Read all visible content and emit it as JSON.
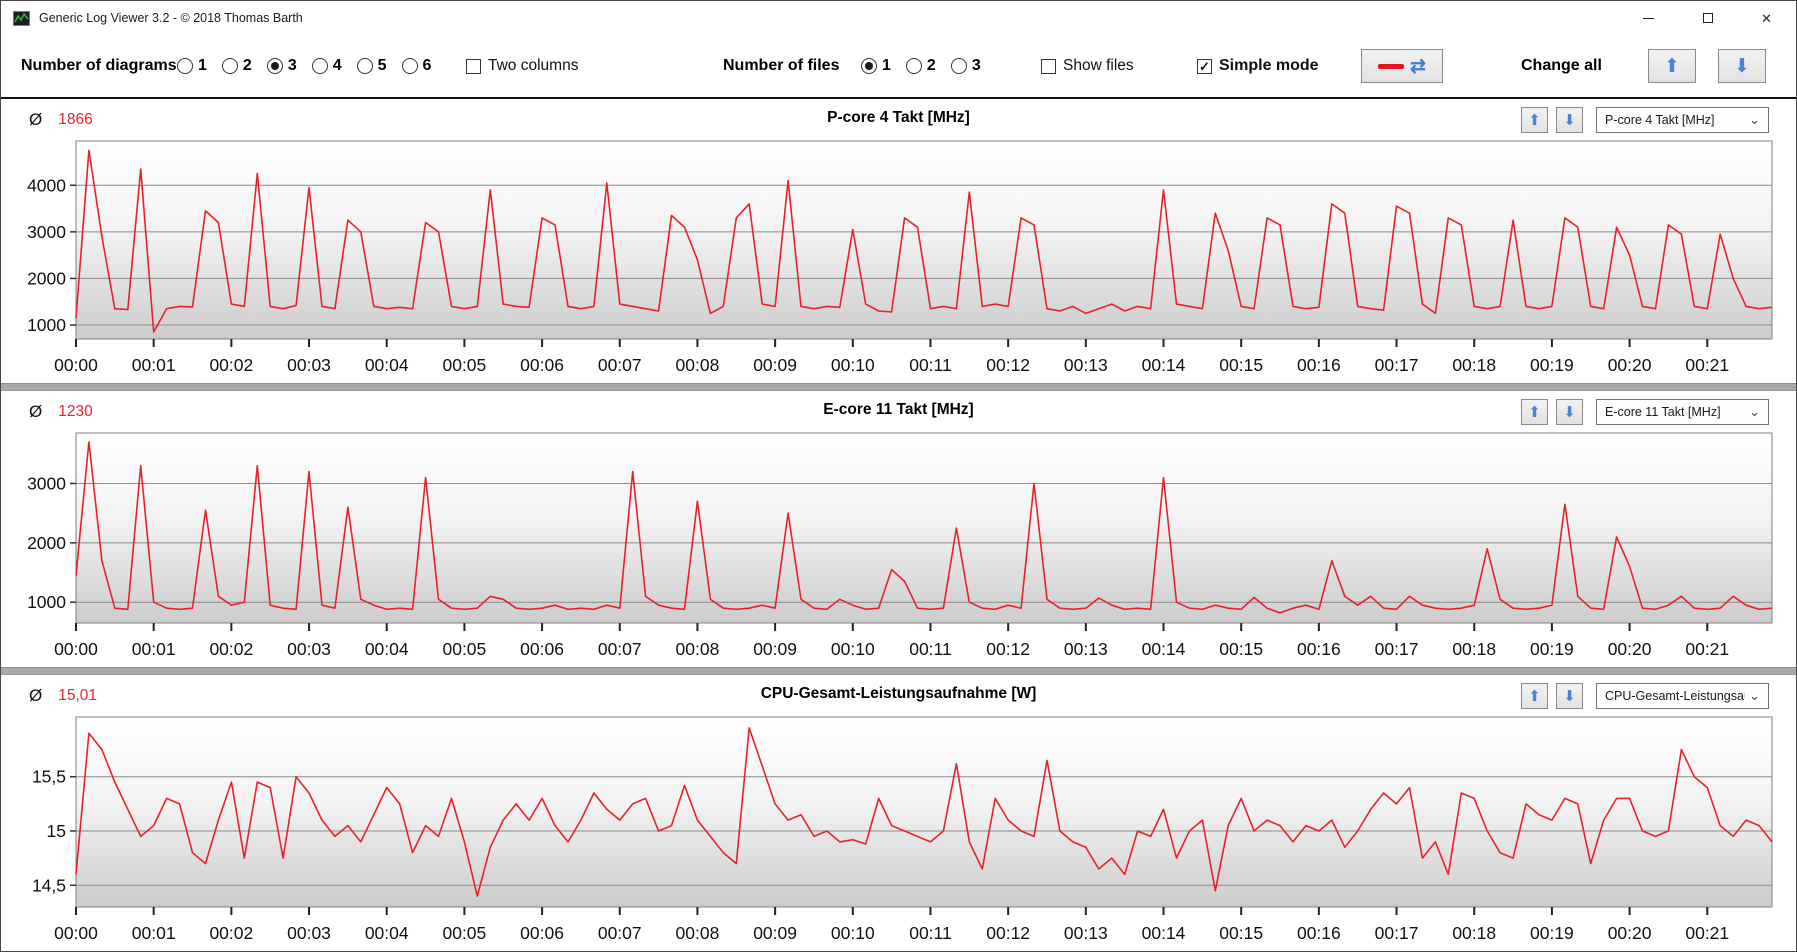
{
  "window": {
    "title": "Generic Log Viewer 3.2 - © 2018 Thomas Barth",
    "controls": {
      "minimize": "minimize",
      "maximize": "maximize",
      "close": "close"
    }
  },
  "toolbar": {
    "number_of_diagrams": {
      "label": "Number of diagrams",
      "options": [
        "1",
        "2",
        "3",
        "4",
        "5",
        "6"
      ],
      "selected": "3"
    },
    "two_columns": {
      "label": "Two columns",
      "checked": false
    },
    "number_of_files": {
      "label": "Number of files",
      "options": [
        "1",
        "2",
        "3"
      ],
      "selected": "1"
    },
    "show_files": {
      "label": "Show files",
      "checked": false
    },
    "simple_mode": {
      "label": "Simple mode",
      "checked": true
    },
    "change_all_label": "Change all",
    "colors": {
      "red_dash": "#e8121f",
      "arrow_blue": "#4a83d4"
    }
  },
  "panels": [
    {
      "avg_symbol": "Ø",
      "average": "1866",
      "title": "P-core 4 Takt [MHz]",
      "dropdown_value": "P-core 4 Takt [MHz]"
    },
    {
      "avg_symbol": "Ø",
      "average": "1230",
      "title": "E-core 11 Takt [MHz]",
      "dropdown_value": "E-core 11 Takt [MHz]"
    },
    {
      "avg_symbol": "Ø",
      "average": "15,01",
      "title": "CPU-Gesamt-Leistungsaufnahme [W]",
      "dropdown_value": "CPU-Gesamt-Leistungsau"
    }
  ],
  "chart_data": [
    {
      "type": "line",
      "title": "P-core 4 Takt [MHz]",
      "average": 1866,
      "line_color": "#e8222a",
      "ylim": [
        700,
        4950
      ],
      "ytick_values": [
        1000,
        2000,
        3000,
        4000
      ],
      "ytick_labels": [
        "1000",
        "2000",
        "3000",
        "4000"
      ],
      "x_step_seconds": 10,
      "x_range_seconds": [
        0,
        1310
      ],
      "x_tick_interval_seconds": 60,
      "x_tick_labels": [
        "00:00",
        "00:01",
        "00:02",
        "00:03",
        "00:04",
        "00:05",
        "00:06",
        "00:07",
        "00:08",
        "00:09",
        "00:10",
        "00:11",
        "00:12",
        "00:13",
        "00:14",
        "00:15",
        "00:16",
        "00:17",
        "00:18",
        "00:19",
        "00:20",
        "00:21"
      ],
      "values": [
        1150,
        4750,
        2900,
        1350,
        1330,
        4350,
        850,
        1350,
        1400,
        1390,
        3450,
        3200,
        1450,
        1400,
        4250,
        1400,
        1350,
        1420,
        3950,
        1400,
        1350,
        3250,
        3000,
        1400,
        1350,
        1380,
        1350,
        3200,
        3000,
        1400,
        1350,
        1400,
        3900,
        1450,
        1400,
        1380,
        3300,
        3150,
        1400,
        1350,
        1400,
        4050,
        1450,
        1400,
        1350,
        1300,
        3350,
        3100,
        2400,
        1250,
        1400,
        3300,
        3600,
        1450,
        1400,
        4100,
        1400,
        1350,
        1400,
        1380,
        3050,
        1450,
        1300,
        1280,
        3300,
        3100,
        1350,
        1400,
        1350,
        3850,
        1400,
        1450,
        1400,
        3300,
        3150,
        1350,
        1300,
        1400,
        1250,
        1350,
        1450,
        1300,
        1400,
        1350,
        3900,
        1450,
        1400,
        1350,
        3400,
        2600,
        1400,
        1350,
        3300,
        3150,
        1400,
        1350,
        1380,
        3600,
        3400,
        1400,
        1350,
        1320,
        3550,
        3400,
        1450,
        1250,
        3300,
        3150,
        1400,
        1350,
        1400,
        3250,
        1400,
        1350,
        1400,
        3300,
        3100,
        1400,
        1350,
        3100,
        2500,
        1400,
        1350,
        3150,
        2950,
        1400,
        1350,
        2950,
        2000,
        1400,
        1350,
        1380
      ]
    },
    {
      "type": "line",
      "title": "E-core 11 Takt [MHz]",
      "average": 1230,
      "line_color": "#e8222a",
      "ylim": [
        650,
        3850
      ],
      "ytick_values": [
        1000,
        2000,
        3000
      ],
      "ytick_labels": [
        "1000",
        "2000",
        "3000"
      ],
      "x_step_seconds": 10,
      "x_range_seconds": [
        0,
        1310
      ],
      "x_tick_interval_seconds": 60,
      "x_tick_labels": [
        "00:00",
        "00:01",
        "00:02",
        "00:03",
        "00:04",
        "00:05",
        "00:06",
        "00:07",
        "00:08",
        "00:09",
        "00:10",
        "00:11",
        "00:12",
        "00:13",
        "00:14",
        "00:15",
        "00:16",
        "00:17",
        "00:18",
        "00:19",
        "00:20",
        "00:21"
      ],
      "values": [
        1450,
        3700,
        1700,
        900,
        880,
        3300,
        1000,
        900,
        880,
        900,
        2550,
        1100,
        950,
        1000,
        3300,
        950,
        900,
        880,
        3200,
        950,
        900,
        2600,
        1050,
        950,
        880,
        900,
        880,
        3100,
        1050,
        900,
        880,
        900,
        1100,
        1050,
        900,
        880,
        900,
        950,
        880,
        900,
        880,
        950,
        900,
        3200,
        1100,
        950,
        900,
        880,
        2700,
        1050,
        900,
        880,
        900,
        950,
        900,
        2500,
        1050,
        900,
        880,
        1050,
        950,
        880,
        900,
        1550,
        1350,
        900,
        880,
        900,
        2250,
        1000,
        900,
        880,
        950,
        900,
        3000,
        1050,
        900,
        880,
        900,
        1070,
        950,
        880,
        900,
        880,
        3100,
        1000,
        900,
        880,
        950,
        900,
        880,
        1080,
        900,
        820,
        900,
        950,
        880,
        1700,
        1100,
        950,
        1100,
        900,
        880,
        1100,
        950,
        900,
        880,
        900,
        950,
        1900,
        1050,
        900,
        880,
        900,
        950,
        2650,
        1100,
        900,
        880,
        2100,
        1600,
        900,
        880,
        950,
        1100,
        900,
        880,
        900,
        1100,
        950,
        880,
        900
      ]
    },
    {
      "type": "line",
      "title": "CPU-Gesamt-Leistungsaufnahme [W]",
      "average": 15.01,
      "line_color": "#e8222a",
      "ylim": [
        14.3,
        16.05
      ],
      "ytick_values": [
        14.5,
        15,
        15.5
      ],
      "ytick_labels": [
        "14,5",
        "15",
        "15,5"
      ],
      "x_step_seconds": 10,
      "x_range_seconds": [
        0,
        1310
      ],
      "x_tick_interval_seconds": 60,
      "x_tick_labels": [
        "00:00",
        "00:01",
        "00:02",
        "00:03",
        "00:04",
        "00:05",
        "00:06",
        "00:07",
        "00:08",
        "00:09",
        "00:10",
        "00:11",
        "00:12",
        "00:13",
        "00:14",
        "00:15",
        "00:16",
        "00:17",
        "00:18",
        "00:19",
        "00:20",
        "00:21"
      ],
      "values": [
        14.6,
        15.9,
        15.75,
        15.45,
        15.2,
        14.95,
        15.05,
        15.3,
        15.25,
        14.8,
        14.7,
        15.1,
        15.45,
        14.75,
        15.45,
        15.4,
        14.75,
        15.5,
        15.35,
        15.1,
        14.95,
        15.05,
        14.9,
        15.15,
        15.4,
        15.25,
        14.8,
        15.05,
        14.95,
        15.3,
        14.9,
        14.4,
        14.85,
        15.1,
        15.25,
        15.1,
        15.3,
        15.05,
        14.9,
        15.1,
        15.35,
        15.2,
        15.1,
        15.25,
        15.3,
        15.0,
        15.05,
        15.42,
        15.1,
        14.95,
        14.8,
        14.7,
        15.95,
        15.6,
        15.25,
        15.1,
        15.15,
        14.95,
        15.0,
        14.9,
        14.92,
        14.88,
        15.3,
        15.05,
        15.0,
        14.95,
        14.9,
        15.0,
        15.62,
        14.9,
        14.65,
        15.3,
        15.1,
        15.0,
        14.95,
        15.65,
        15.0,
        14.9,
        14.85,
        14.65,
        14.75,
        14.6,
        15.0,
        14.95,
        15.2,
        14.75,
        15.0,
        15.1,
        14.45,
        15.05,
        15.3,
        15.0,
        15.1,
        15.05,
        14.9,
        15.05,
        15.0,
        15.1,
        14.85,
        15.0,
        15.2,
        15.35,
        15.25,
        15.4,
        14.75,
        14.9,
        14.6,
        15.35,
        15.3,
        15.0,
        14.8,
        14.75,
        15.25,
        15.15,
        15.1,
        15.3,
        15.25,
        14.7,
        15.1,
        15.3,
        15.3,
        15.0,
        14.95,
        15.0,
        15.75,
        15.5,
        15.4,
        15.05,
        14.95,
        15.1,
        15.05,
        14.9
      ]
    }
  ]
}
